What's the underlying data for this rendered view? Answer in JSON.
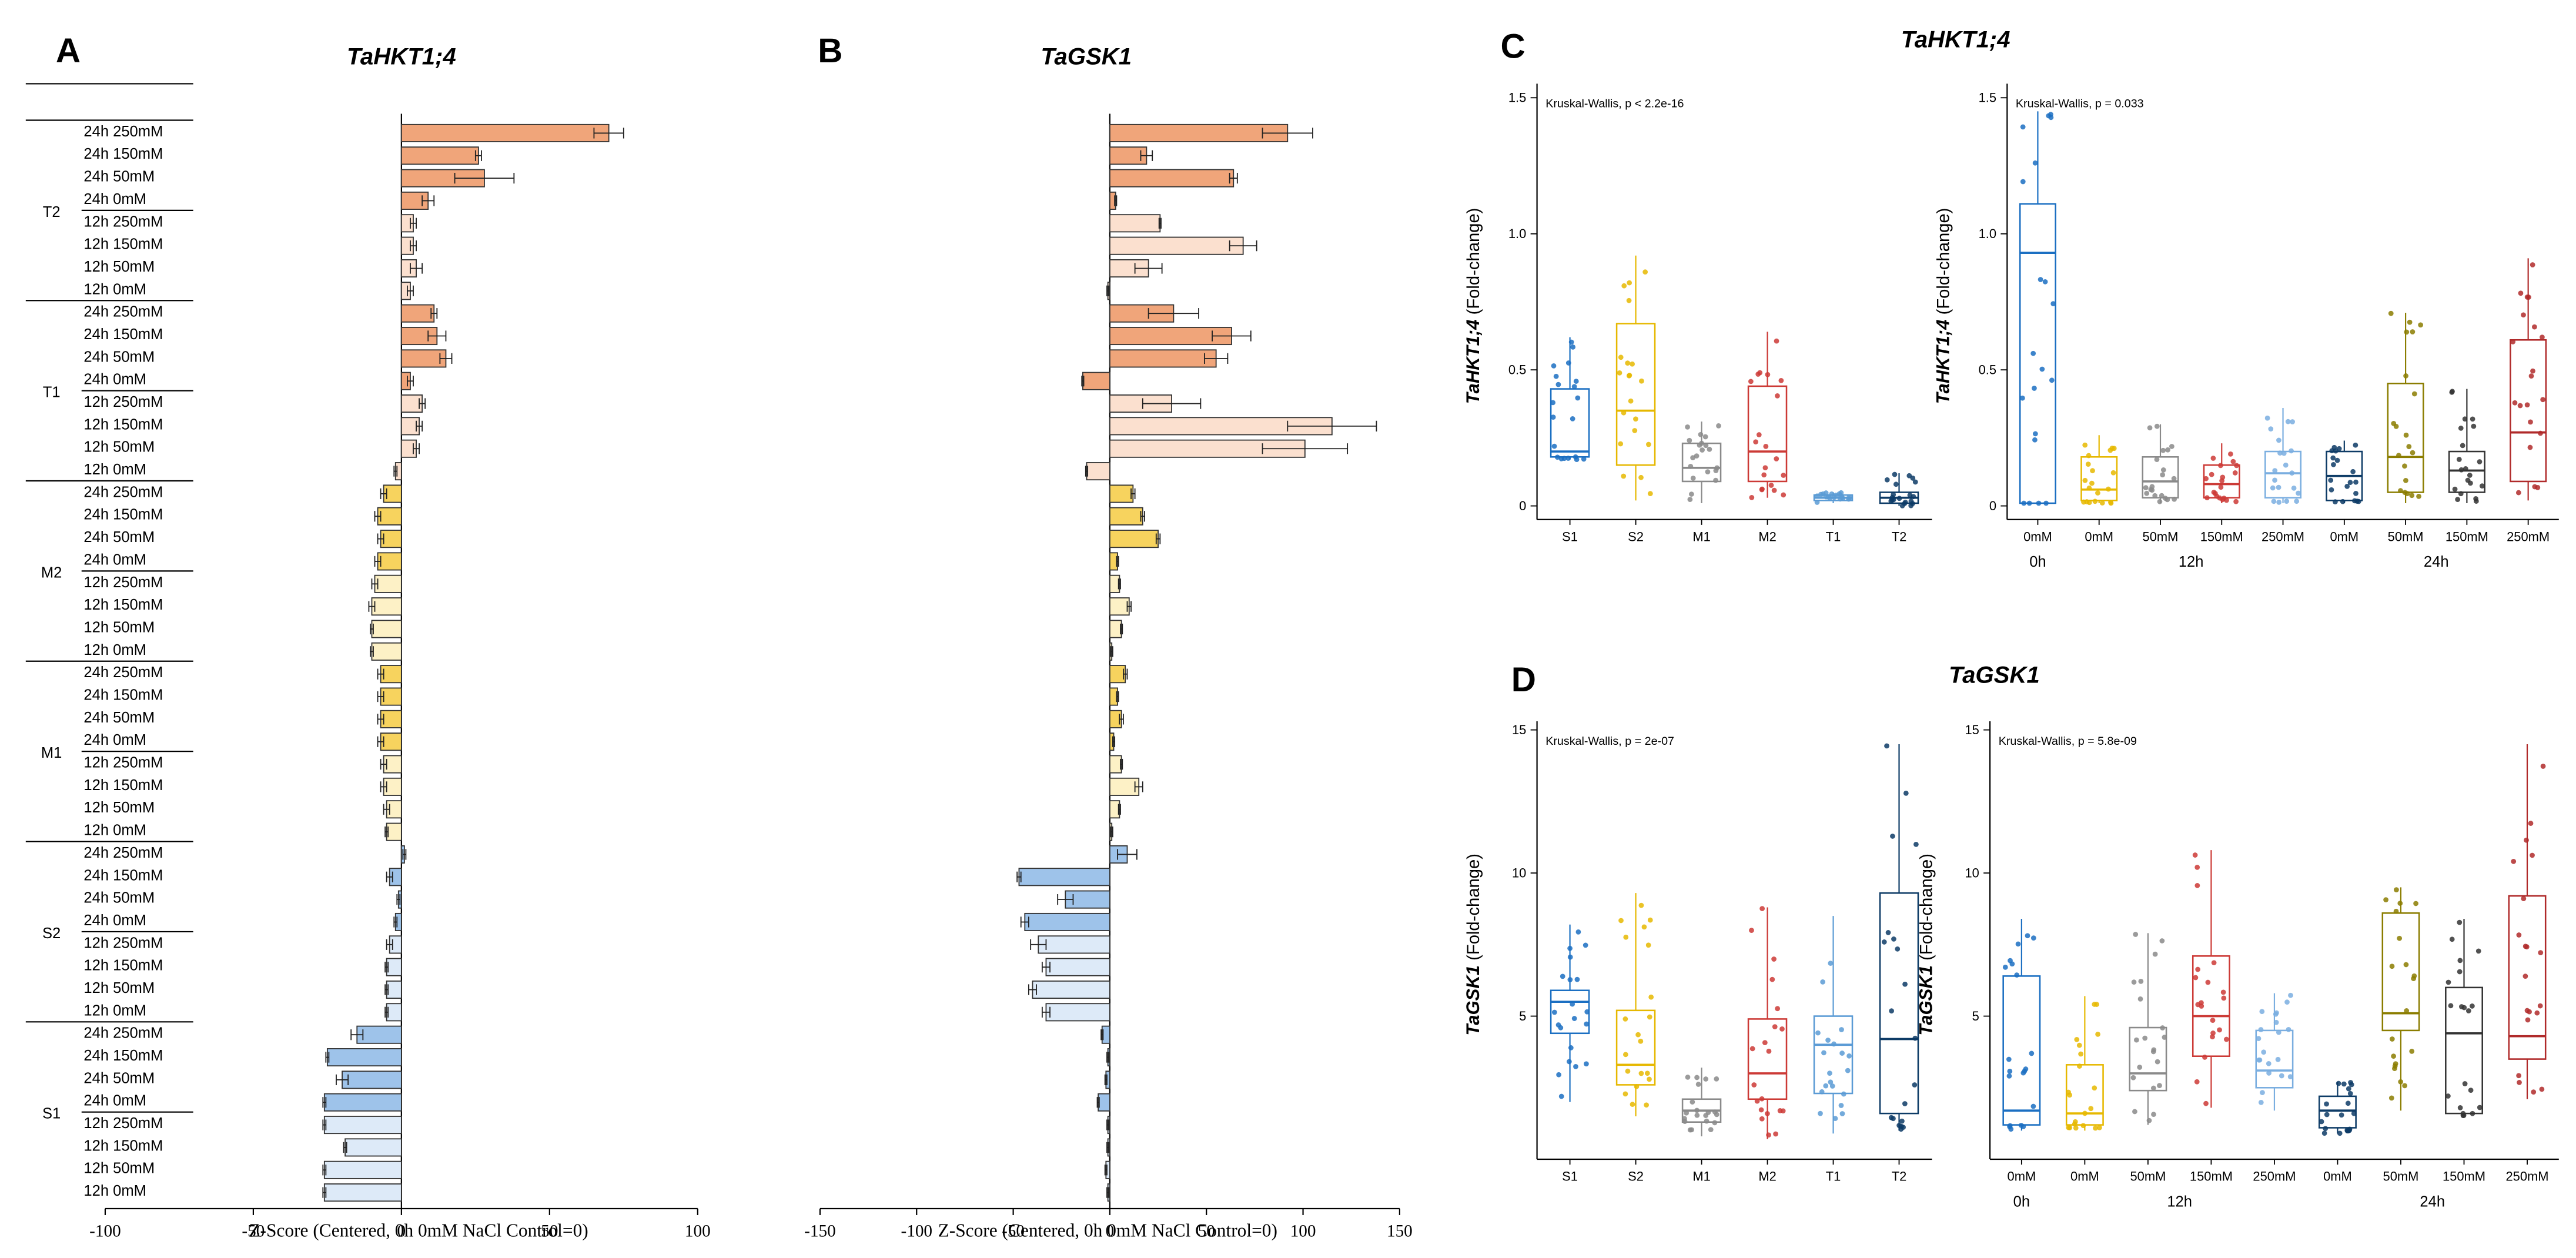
{
  "chart_data": [
    {
      "type": "bar",
      "orientation": "horizontal",
      "panel": "A",
      "title": "TaHKT1;4",
      "xlabel": "Z-Score (Centered, 0h 0mM NaCl Control=0)",
      "xlim": [
        -100,
        100
      ],
      "xticks": [
        "-100",
        "-50",
        "0",
        "50",
        "100"
      ],
      "series": [
        {
          "name": "T2",
          "categories": [
            "24h 250mM",
            "24h 150mM",
            "24h 50mM",
            "24h 0mM",
            "12h 250mM",
            "12h 150mM",
            "12h 50mM",
            "12h 0mM"
          ],
          "values": [
            70,
            26,
            28,
            9,
            4,
            4,
            5,
            3
          ],
          "errors": [
            5,
            1,
            10,
            2,
            1,
            1,
            2,
            1
          ]
        },
        {
          "name": "T1",
          "categories": [
            "24h 250mM",
            "24h 150mM",
            "24h 50mM",
            "24h 0mM",
            "12h 250mM",
            "12h 150mM",
            "12h 50mM",
            "12h 0mM"
          ],
          "values": [
            11,
            12,
            15,
            3,
            7,
            6,
            5,
            -2
          ],
          "errors": [
            1,
            3,
            2,
            1,
            1,
            1,
            1,
            0.5
          ]
        },
        {
          "name": "M2",
          "categories": [
            "24h 250mM",
            "24h 150mM",
            "24h 50mM",
            "24h 0mM",
            "12h 250mM",
            "12h 150mM",
            "12h 50mM",
            "12h 0mM"
          ],
          "values": [
            -6,
            -8,
            -7,
            -8,
            -9,
            -10,
            -10,
            -10
          ],
          "errors": [
            1,
            1,
            1,
            1,
            1,
            1,
            0.5,
            0.5
          ]
        },
        {
          "name": "M1",
          "categories": [
            "24h 250mM",
            "24h 150mM",
            "24h 50mM",
            "24h 0mM",
            "12h 250mM",
            "12h 150mM",
            "12h 50mM",
            "12h 0mM"
          ],
          "values": [
            -7,
            -7,
            -7,
            -7,
            -6,
            -6,
            -5,
            -5
          ],
          "errors": [
            1,
            1,
            1,
            1,
            1,
            1,
            1,
            0.5
          ]
        },
        {
          "name": "S2",
          "categories": [
            "24h 250mM",
            "24h 150mM",
            "24h 50mM",
            "24h 0mM",
            "12h 250mM",
            "12h 150mM",
            "12h 50mM",
            "12h 0mM"
          ],
          "values": [
            1,
            -4,
            -1,
            -2,
            -4,
            -5,
            -5,
            -5
          ],
          "errors": [
            0.5,
            1,
            0.5,
            0.5,
            1,
            0.5,
            0.5,
            0.5
          ]
        },
        {
          "name": "S1",
          "categories": [
            "24h 250mM",
            "24h 150mM",
            "24h 50mM",
            "24h 0mM",
            "12h 250mM",
            "12h 150mM",
            "12h 50mM",
            "12h 0mM"
          ],
          "values": [
            -15,
            -25,
            -20,
            -26,
            -26,
            -19,
            -26,
            -26
          ],
          "errors": [
            2,
            0.5,
            2,
            0.5,
            0.5,
            0.5,
            0.5,
            0.5
          ]
        }
      ]
    },
    {
      "type": "bar",
      "orientation": "horizontal",
      "panel": "B",
      "title": "TaGSK1",
      "xlabel": "Z-Score (Centered, 0h 0mM NaCl Control=0)",
      "xlim": [
        -150,
        150
      ],
      "xticks": [
        "-150",
        "-100",
        "-50",
        "0",
        "50",
        "100",
        "150"
      ],
      "series": [
        {
          "name": "T2",
          "categories": [
            "24h 250mM",
            "24h 150mM",
            "24h 50mM",
            "24h 0mM",
            "12h 250mM",
            "12h 150mM",
            "12h 50mM",
            "12h 0mM"
          ],
          "values": [
            92,
            19,
            64,
            3,
            26,
            69,
            20,
            -1
          ],
          "errors": [
            13,
            3,
            2,
            0.5,
            0.5,
            7,
            7,
            0.5
          ]
        },
        {
          "name": "T1",
          "categories": [
            "24h 250mM",
            "24h 150mM",
            "24h 50mM",
            "24h 0mM",
            "12h 250mM",
            "12h 150mM",
            "12h 50mM",
            "12h 0mM"
          ],
          "values": [
            33,
            63,
            55,
            -14,
            32,
            115,
            101,
            -12
          ],
          "errors": [
            13,
            10,
            6,
            0.5,
            15,
            23,
            22,
            0.5
          ]
        },
        {
          "name": "M2",
          "categories": [
            "24h 250mM",
            "24h 150mM",
            "24h 50mM",
            "24h 0mM",
            "12h 250mM",
            "12h 150mM",
            "12h 50mM",
            "12h 0mM"
          ],
          "values": [
            12,
            17,
            25,
            4,
            5,
            10,
            6,
            1
          ],
          "errors": [
            1,
            1,
            1,
            0.5,
            0.5,
            1,
            0.5,
            0.5
          ]
        },
        {
          "name": "M1",
          "categories": [
            "24h 250mM",
            "24h 150mM",
            "24h 50mM",
            "24h 0mM",
            "12h 250mM",
            "12h 150mM",
            "12h 50mM",
            "12h 0mM"
          ],
          "values": [
            8,
            4,
            6,
            2,
            6,
            15,
            5,
            1
          ],
          "errors": [
            1,
            0.5,
            1,
            0.5,
            0.5,
            2,
            0.5,
            0.5
          ]
        },
        {
          "name": "S2",
          "categories": [
            "24h 250mM",
            "24h 150mM",
            "24h 50mM",
            "24h 0mM",
            "12h 250mM",
            "12h 150mM",
            "12h 50mM",
            "12h 0mM"
          ],
          "values": [
            9,
            -47,
            -23,
            -44,
            -37,
            -33,
            -40,
            -33
          ],
          "errors": [
            5,
            1,
            4,
            2,
            4,
            2,
            2,
            2
          ]
        },
        {
          "name": "S1",
          "categories": [
            "24h 250mM",
            "24h 150mM",
            "24h 50mM",
            "24h 0mM",
            "12h 250mM",
            "12h 150mM",
            "12h 50mM",
            "12h 0mM"
          ],
          "values": [
            -4,
            -1,
            -2,
            -6,
            -1,
            -1,
            -2,
            -1
          ],
          "errors": [
            0.5,
            0.5,
            0.5,
            0.5,
            0.5,
            0.5,
            0.5,
            0.5
          ]
        }
      ]
    },
    {
      "type": "box",
      "panel": "C",
      "title": "TaHKT1;4",
      "subplots": [
        {
          "ylabel_gene": "TaHKT1;4",
          "ylabel_unit": " (Fold-change)",
          "annotation": "Kruskal-Wallis, p < 2.2e-16",
          "ylim": [
            -0.05,
            1.52
          ],
          "yticks": [
            "0",
            "0.5",
            "1.0",
            "1.5"
          ],
          "categories": [
            "S1",
            "S2",
            "M1",
            "M2",
            "T1",
            "T2"
          ],
          "group_labels": [],
          "boxes": [
            {
              "q1": 0.18,
              "med": 0.2,
              "q3": 0.43,
              "lo": 0.17,
              "hi": 0.62,
              "color": "#1b6fc2"
            },
            {
              "q1": 0.15,
              "med": 0.35,
              "q3": 0.67,
              "lo": 0.02,
              "hi": 0.92,
              "color": "#e6b800"
            },
            {
              "q1": 0.09,
              "med": 0.14,
              "q3": 0.23,
              "lo": 0.01,
              "hi": 0.31,
              "color": "#8a8a8a"
            },
            {
              "q1": 0.09,
              "med": 0.2,
              "q3": 0.44,
              "lo": 0.03,
              "hi": 0.64,
              "color": "#cc3a36"
            },
            {
              "q1": 0.02,
              "med": 0.03,
              "q3": 0.04,
              "lo": 0.01,
              "hi": 0.05,
              "color": "#5b9bd5"
            },
            {
              "q1": 0.01,
              "med": 0.03,
              "q3": 0.05,
              "lo": 0.0,
              "hi": 0.12,
              "color": "#0d3b66"
            }
          ]
        },
        {
          "ylabel_gene": "TaHKT1;4",
          "ylabel_unit": " (Fold-change)",
          "annotation": "Kruskal-Wallis, p = 0.033",
          "ylim": [
            -0.05,
            1.52
          ],
          "yticks": [
            "0",
            "0.5",
            "1.0",
            "1.5"
          ],
          "categories": [
            "0mM",
            "0mM",
            "50mM",
            "150mM",
            "250mM",
            "0mM",
            "50mM",
            "150mM",
            "250mM"
          ],
          "group_labels": [
            {
              "text": "0h",
              "pos": 0
            },
            {
              "text": "12h",
              "pos": 2.5
            },
            {
              "text": "24h",
              "pos": 6.5
            }
          ],
          "boxes": [
            {
              "q1": 0.01,
              "med": 0.93,
              "q3": 1.11,
              "lo": 0.01,
              "hi": 1.45,
              "color": "#1b6fc2"
            },
            {
              "q1": 0.02,
              "med": 0.06,
              "q3": 0.18,
              "lo": 0.01,
              "hi": 0.26,
              "color": "#e6b800"
            },
            {
              "q1": 0.03,
              "med": 0.09,
              "q3": 0.18,
              "lo": 0.01,
              "hi": 0.3,
              "color": "#8a8a8a"
            },
            {
              "q1": 0.03,
              "med": 0.08,
              "q3": 0.15,
              "lo": 0.01,
              "hi": 0.23,
              "color": "#cc3a36"
            },
            {
              "q1": 0.03,
              "med": 0.12,
              "q3": 0.2,
              "lo": 0.01,
              "hi": 0.36,
              "color": "#7aaee0"
            },
            {
              "q1": 0.02,
              "med": 0.11,
              "q3": 0.2,
              "lo": 0.01,
              "hi": 0.24,
              "color": "#0d3b66"
            },
            {
              "q1": 0.05,
              "med": 0.18,
              "q3": 0.45,
              "lo": 0.01,
              "hi": 0.71,
              "color": "#8b7d00"
            },
            {
              "q1": 0.05,
              "med": 0.13,
              "q3": 0.2,
              "lo": 0.01,
              "hi": 0.43,
              "color": "#333333"
            },
            {
              "q1": 0.09,
              "med": 0.27,
              "q3": 0.61,
              "lo": 0.02,
              "hi": 0.91,
              "color": "#b02a2a"
            }
          ]
        }
      ]
    },
    {
      "type": "box",
      "panel": "D",
      "title": "TaGSK1",
      "subplots": [
        {
          "ylabel_gene": "TaGSK1",
          "ylabel_unit": " (Fold-change)",
          "annotation": "Kruskal-Wallis, p = 2e-07",
          "ylim": [
            0,
            15
          ],
          "yticks": [
            "5",
            "10",
            "15"
          ],
          "categories": [
            "S1",
            "S2",
            "M1",
            "M2",
            "T1",
            "T2"
          ],
          "group_labels": [],
          "boxes": [
            {
              "q1": 4.4,
              "med": 5.5,
              "q3": 5.9,
              "lo": 2.0,
              "hi": 8.2,
              "color": "#1b6fc2"
            },
            {
              "q1": 2.6,
              "med": 3.3,
              "q3": 5.2,
              "lo": 1.5,
              "hi": 9.3,
              "color": "#e6b800"
            },
            {
              "q1": 1.3,
              "med": 1.7,
              "q3": 2.1,
              "lo": 0.8,
              "hi": 3.2,
              "color": "#8a8a8a"
            },
            {
              "q1": 2.1,
              "med": 3.0,
              "q3": 4.9,
              "lo": 0.7,
              "hi": 8.8,
              "color": "#cc3a36"
            },
            {
              "q1": 2.3,
              "med": 4.0,
              "q3": 5.0,
              "lo": 0.9,
              "hi": 8.5,
              "color": "#5b9bd5"
            },
            {
              "q1": 1.6,
              "med": 4.2,
              "q3": 9.3,
              "lo": 1.0,
              "hi": 14.5,
              "color": "#0d3b66"
            }
          ]
        },
        {
          "ylabel_gene": "TaGSK1",
          "ylabel_unit": " (Fold-change)",
          "annotation": "Kruskal-Wallis, p = 5.8e-09",
          "ylim": [
            0,
            15
          ],
          "yticks": [
            "5",
            "10",
            "15"
          ],
          "categories": [
            "0mM",
            "0mM",
            "50mM",
            "150mM",
            "250mM",
            "0mM",
            "50mM",
            "150mM",
            "250mM"
          ],
          "group_labels": [
            {
              "text": "0h",
              "pos": 0
            },
            {
              "text": "12h",
              "pos": 2.5
            },
            {
              "text": "24h",
              "pos": 6.5
            }
          ],
          "boxes": [
            {
              "q1": 1.2,
              "med": 1.7,
              "q3": 6.4,
              "lo": 1.0,
              "hi": 8.4,
              "color": "#1b6fc2"
            },
            {
              "q1": 1.2,
              "med": 1.6,
              "q3": 3.3,
              "lo": 1.0,
              "hi": 5.7,
              "color": "#e6b800"
            },
            {
              "q1": 2.4,
              "med": 3.0,
              "q3": 4.6,
              "lo": 1.2,
              "hi": 7.9,
              "color": "#8a8a8a"
            },
            {
              "q1": 3.6,
              "med": 5.0,
              "q3": 7.1,
              "lo": 1.8,
              "hi": 10.8,
              "color": "#cc3a36"
            },
            {
              "q1": 2.5,
              "med": 3.1,
              "q3": 4.5,
              "lo": 1.7,
              "hi": 5.8,
              "color": "#7aaee0"
            },
            {
              "q1": 1.1,
              "med": 1.7,
              "q3": 2.2,
              "lo": 0.9,
              "hi": 2.7,
              "color": "#0d3b66"
            },
            {
              "q1": 4.5,
              "med": 5.1,
              "q3": 8.6,
              "lo": 1.7,
              "hi": 9.5,
              "color": "#8b7d00"
            },
            {
              "q1": 1.6,
              "med": 4.4,
              "q3": 6.0,
              "lo": 1.5,
              "hi": 8.4,
              "color": "#333333"
            },
            {
              "q1": 3.5,
              "med": 4.3,
              "q3": 9.2,
              "lo": 2.1,
              "hi": 14.5,
              "color": "#b02a2a"
            }
          ]
        }
      ]
    }
  ]
}
